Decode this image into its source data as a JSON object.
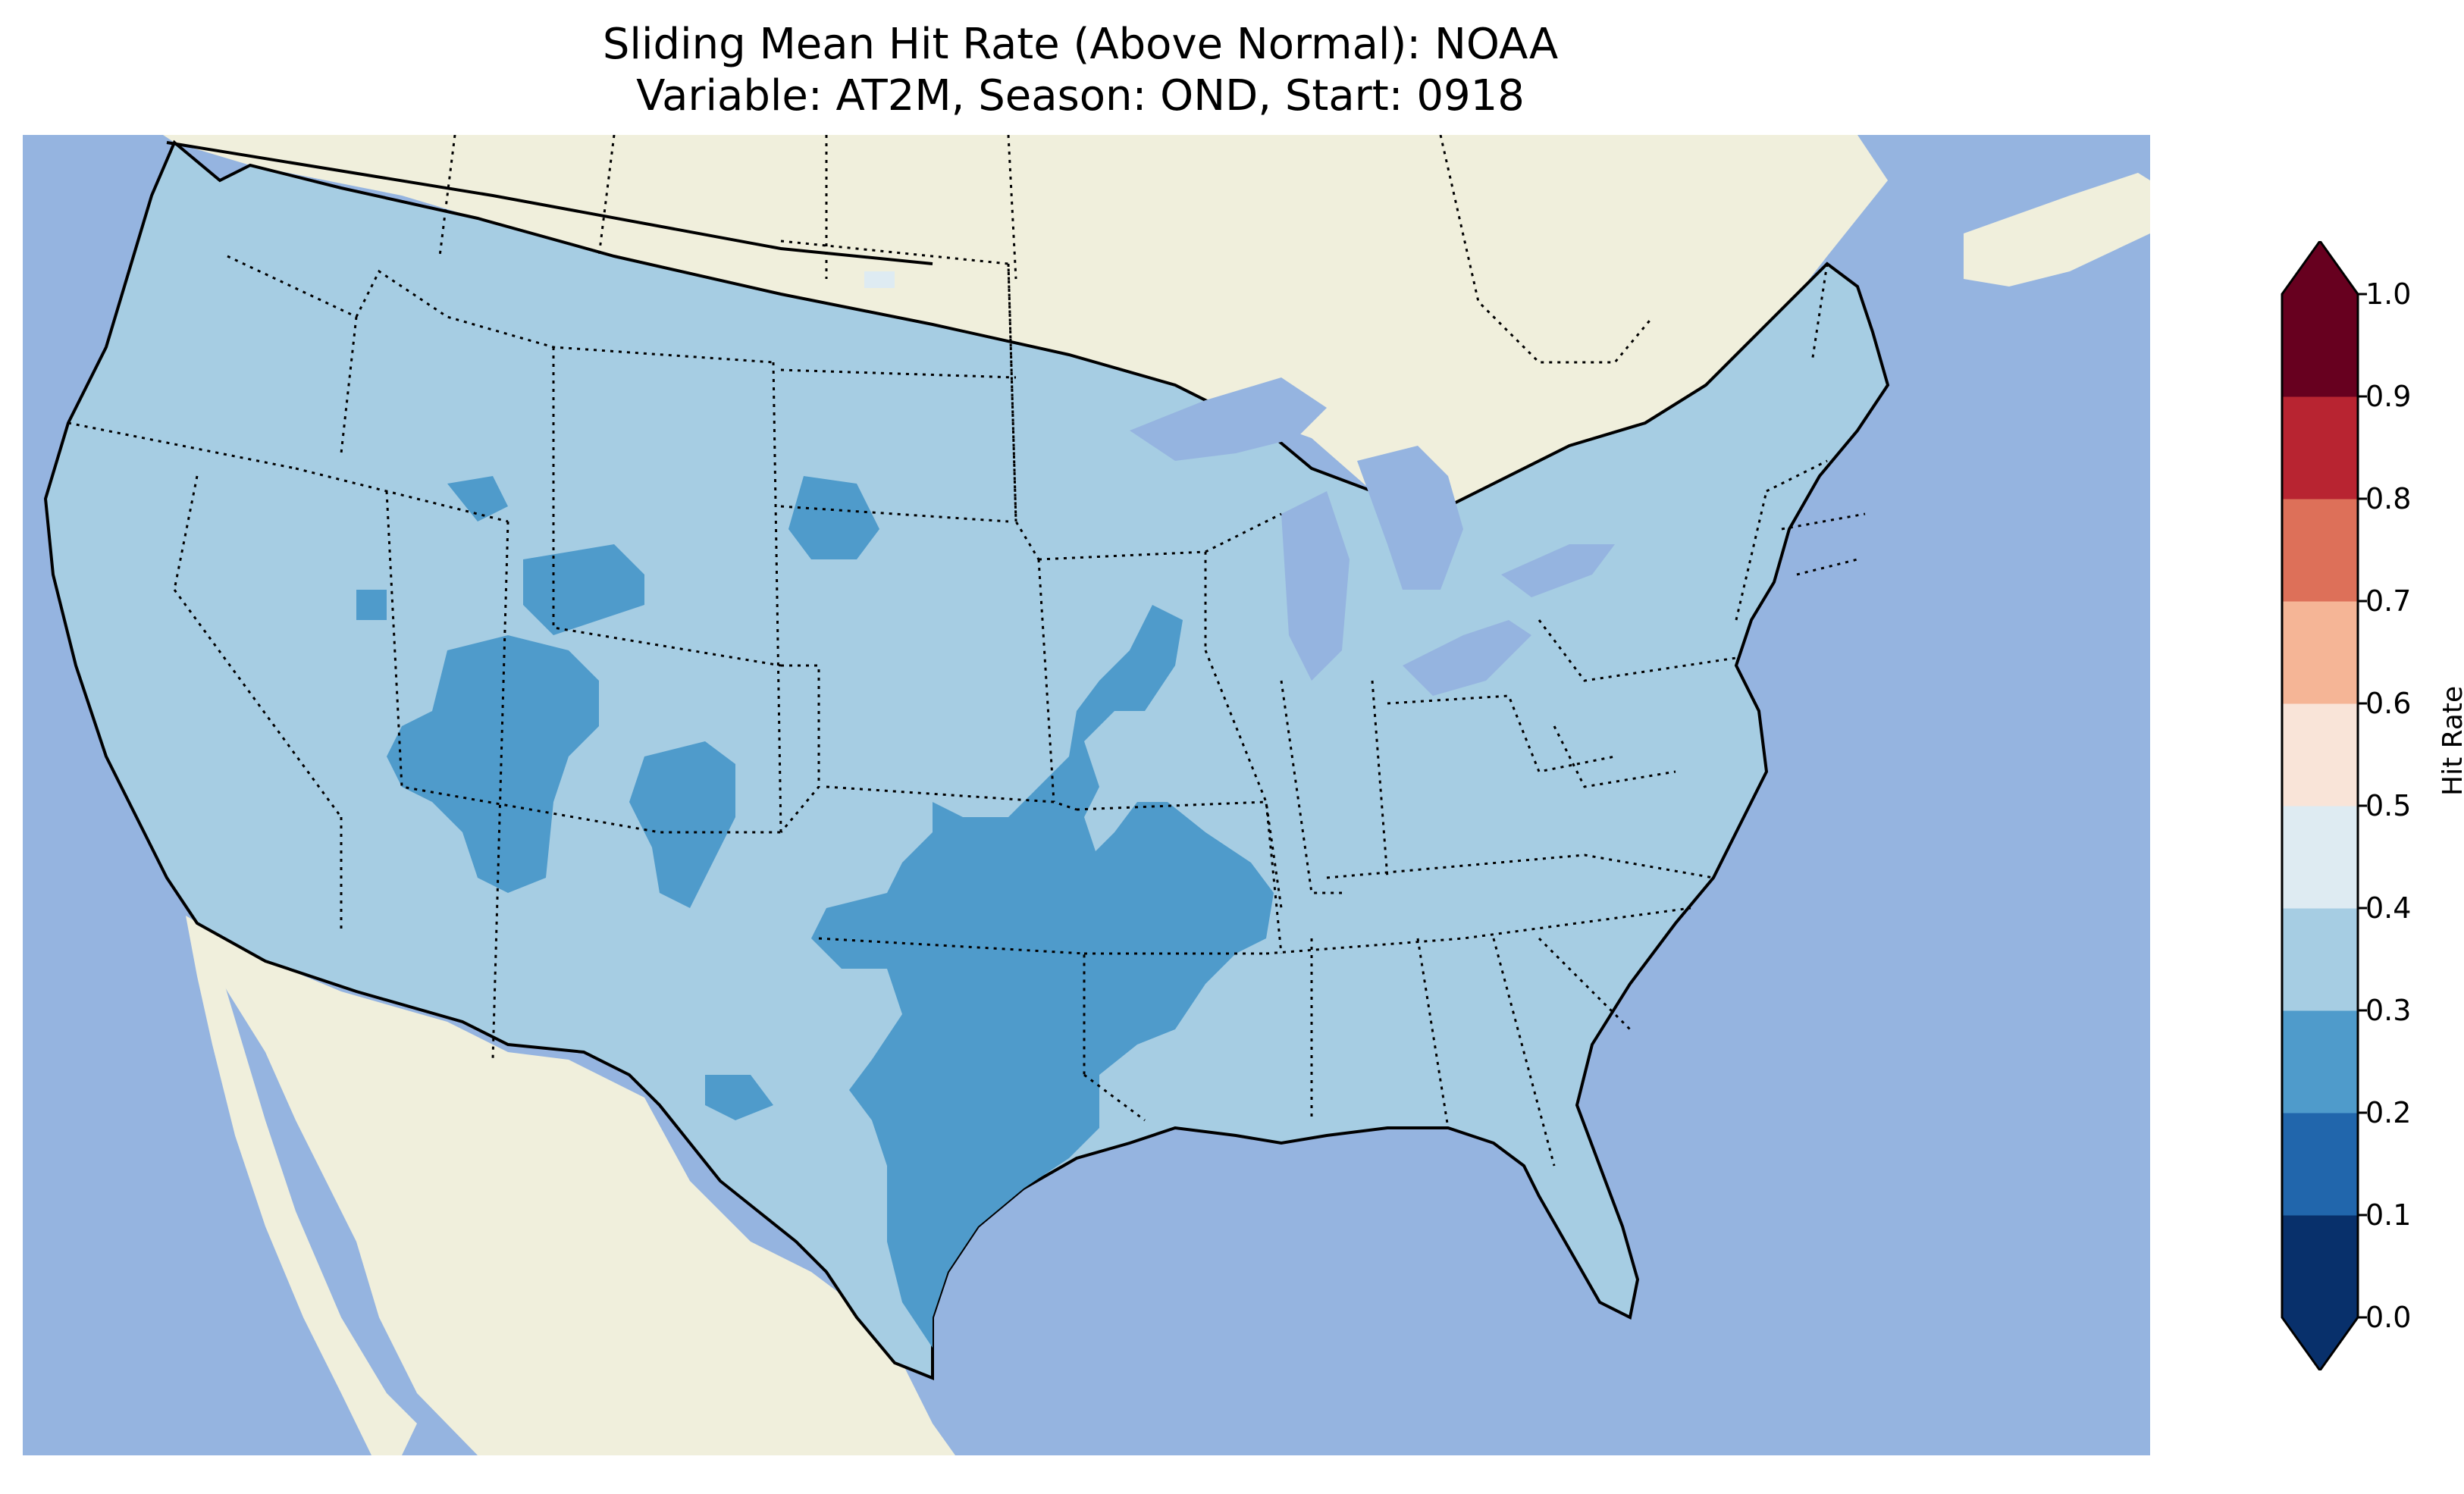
{
  "title": {
    "line1": "Sliding Mean Hit Rate (Above Normal): NOAA",
    "line2": "Variable: AT2M, Season: OND, Start: 0918"
  },
  "colorbar": {
    "label": "Hit Rate",
    "ticks": [
      "0.0",
      "0.1",
      "0.2",
      "0.3",
      "0.4",
      "0.5",
      "0.6",
      "0.7",
      "0.8",
      "0.9",
      "1.0"
    ],
    "bins": [
      {
        "range": [
          0.0,
          0.1
        ],
        "color": "#08306b"
      },
      {
        "range": [
          0.1,
          0.2
        ],
        "color": "#2166ac"
      },
      {
        "range": [
          0.2,
          0.3
        ],
        "color": "#4f9bcb"
      },
      {
        "range": [
          0.3,
          0.4
        ],
        "color": "#a6cde3"
      },
      {
        "range": [
          0.4,
          0.5
        ],
        "color": "#deebf2"
      },
      {
        "range": [
          0.5,
          0.6
        ],
        "color": "#f9e4d8"
      },
      {
        "range": [
          0.6,
          0.7
        ],
        "color": "#f5b596"
      },
      {
        "range": [
          0.7,
          0.8
        ],
        "color": "#dd7059"
      },
      {
        "range": [
          0.8,
          0.9
        ],
        "color": "#b82431"
      },
      {
        "range": [
          0.9,
          1.0
        ],
        "color": "#67001f"
      }
    ],
    "extend": "both"
  },
  "map_colors": {
    "ocean": "#95b4e0",
    "land": "#f0efdc",
    "conus_fill": "#a6cde3",
    "low_regions": "#4f9bcb"
  }
}
